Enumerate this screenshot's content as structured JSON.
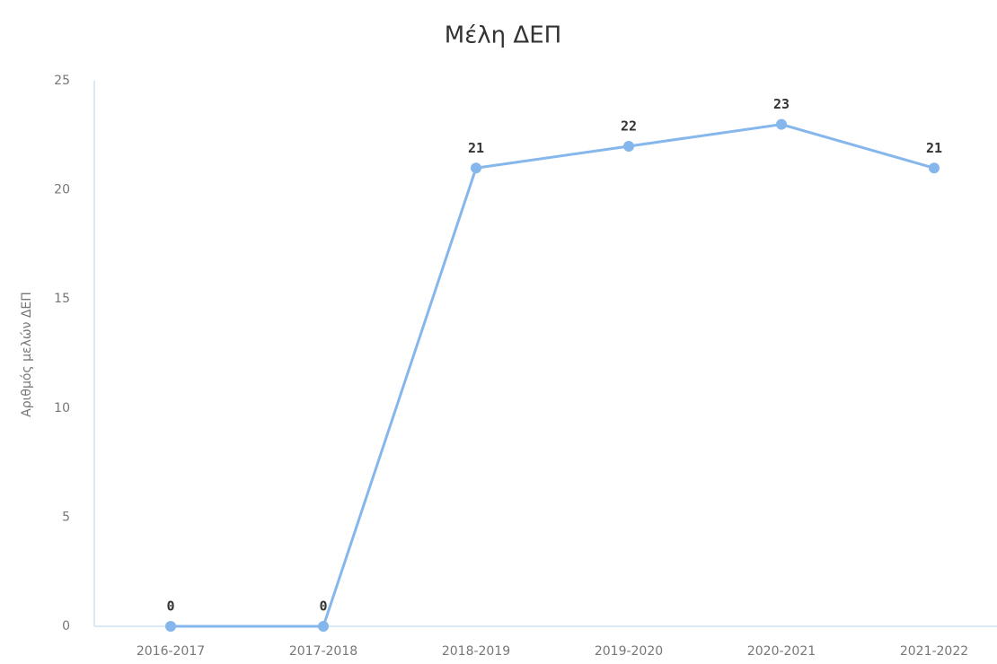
{
  "chart_data": {
    "type": "line",
    "title": "Μέλη ΔΕΠ",
    "ylabel": "Αριθμός μελών ΔΕΠ",
    "categories": [
      "2016-2017",
      "2017-2018",
      "2018-2019",
      "2019-2020",
      "2020-2021",
      "2021-2022"
    ],
    "series": [
      {
        "name": "Μέλη ΔΕΠ",
        "color": "#85b6ec",
        "values": [
          0,
          0,
          21,
          22,
          23,
          21
        ]
      }
    ],
    "ylim": [
      0,
      25
    ],
    "yticks": [
      0,
      5,
      10,
      15,
      20,
      25
    ],
    "grid": false
  }
}
